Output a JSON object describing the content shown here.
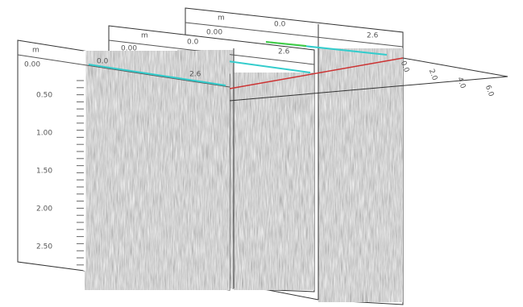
{
  "panels": [
    {
      "unit": "m",
      "start": "0.0",
      "end": "2.6",
      "depth": "0.00"
    },
    {
      "unit": "m",
      "start": "0.0",
      "end": "2.6",
      "depth": "0.00"
    },
    {
      "unit": "m",
      "start": "0.0",
      "end": "2.6",
      "depth": "0.00"
    }
  ],
  "depth_labels": [
    "0.50",
    "1.00",
    "1.50",
    "2.00",
    "2.50"
  ],
  "side_labels": [
    "0.0",
    "2.0",
    "4.0",
    "6.0"
  ]
}
